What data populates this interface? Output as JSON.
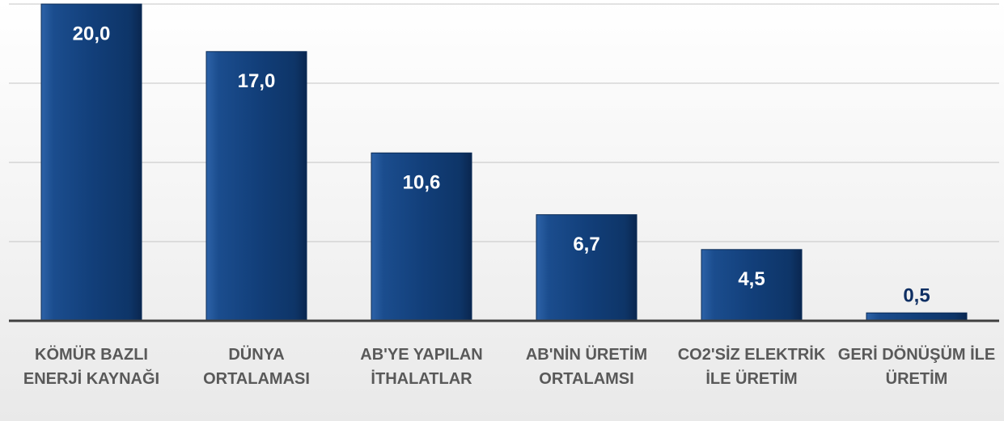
{
  "chart_data": {
    "type": "bar",
    "categories": [
      "KÖMÜR BAZLI ENERJİ KAYNAĞI",
      "DÜNYA ORTALAMASI",
      "AB'YE YAPILAN İTHALATLAR",
      "AB'NİN ÜRETİM ORTALAMSI",
      "CO2'SİZ ELEKTRİK İLE ÜRETİM",
      "GERİ DÖNÜŞÜM İLE ÜRETİM"
    ],
    "values": [
      20.0,
      17.0,
      10.6,
      6.7,
      4.5,
      0.5
    ],
    "value_labels": [
      "20,0",
      "17,0",
      "10,6",
      "6,7",
      "4,5",
      "0,5"
    ],
    "color": "#174a8a",
    "ylim": [
      0,
      20
    ],
    "yticks": [
      0,
      5,
      10,
      15,
      20
    ],
    "grid": true
  }
}
